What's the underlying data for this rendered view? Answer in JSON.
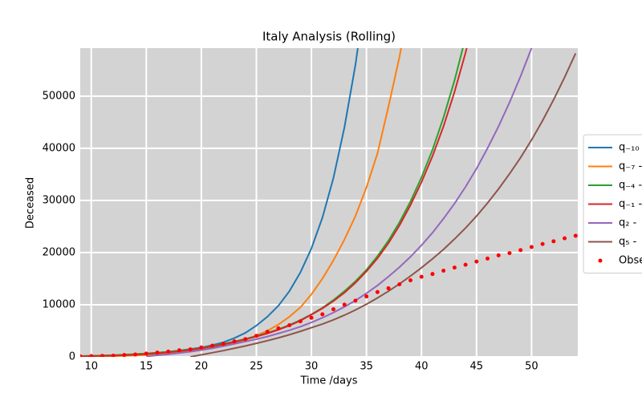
{
  "chart_data": {
    "type": "line",
    "title": "Italy Analysis (Rolling)",
    "x_label": "Time /days",
    "y_label": "Deceased",
    "xlim": [
      9,
      54.2
    ],
    "ylim": [
      0,
      59200
    ],
    "xticks": [
      10,
      15,
      20,
      25,
      30,
      35,
      40,
      45,
      50
    ],
    "yticks": [
      0,
      10000,
      20000,
      30000,
      40000,
      50000
    ],
    "grid": true,
    "background": "#d3d3d3",
    "legend": "right",
    "series": [
      {
        "name": "q₋₁₀",
        "color": "#1f77b4",
        "style": "line",
        "x": [
          9,
          10,
          11,
          12,
          13,
          14,
          15,
          16,
          17,
          18,
          19,
          20,
          21,
          22,
          23,
          24,
          25,
          26,
          27,
          28,
          29,
          30,
          31,
          32,
          33,
          34,
          35
        ],
        "values": [
          150,
          190,
          240,
          310,
          390,
          490,
          620,
          780,
          980,
          1220,
          1500,
          1800,
          2250,
          2800,
          3600,
          4600,
          6000,
          7700,
          9800,
          12600,
          16200,
          20800,
          26700,
          34300,
          44000,
          56000,
          71000
        ]
      },
      {
        "name": "q₋₇ -",
        "color": "#ff7f0e",
        "style": "line",
        "x": [
          9,
          10,
          11,
          12,
          13,
          14,
          15,
          16,
          17,
          18,
          19,
          20,
          21,
          22,
          23,
          24,
          25,
          26,
          27,
          28,
          29,
          30,
          31,
          32,
          33,
          34,
          35,
          36,
          37,
          38,
          39
        ],
        "values": [
          60,
          80,
          110,
          150,
          200,
          270,
          360,
          480,
          640,
          850,
          1150,
          1500,
          1800,
          2200,
          2700,
          3300,
          4100,
          5000,
          6200,
          7700,
          9500,
          12000,
          15000,
          18500,
          22500,
          27000,
          32500,
          39000,
          48000,
          57500,
          69000
        ]
      },
      {
        "name": "q₋₄ -",
        "color": "#2ca02c",
        "style": "line",
        "x": [
          9,
          10,
          11,
          12,
          13,
          14,
          15,
          16,
          17,
          18,
          19,
          20,
          21,
          22,
          23,
          24,
          25,
          26,
          27,
          28,
          29,
          30,
          31,
          32,
          33,
          34,
          35,
          36,
          37,
          38,
          39,
          40,
          41,
          42,
          43,
          44
        ],
        "values": [
          150,
          200,
          260,
          330,
          420,
          530,
          660,
          810,
          990,
          1200,
          1450,
          1750,
          2100,
          2500,
          2950,
          3450,
          4000,
          4600,
          5300,
          6100,
          7050,
          8150,
          9400,
          10900,
          12600,
          14500,
          16700,
          19300,
          22300,
          25800,
          29800,
          34400,
          39700,
          45900,
          53000,
          61200
        ]
      },
      {
        "name": "q₋₁ -",
        "color": "#d62728",
        "style": "line",
        "x": [
          9,
          10,
          11,
          12,
          13,
          14,
          15,
          16,
          17,
          18,
          19,
          20,
          21,
          22,
          23,
          24,
          25,
          26,
          27,
          28,
          29,
          30,
          31,
          32,
          33,
          34,
          35,
          36,
          37,
          38,
          39,
          40,
          41,
          42,
          43,
          44,
          45
        ],
        "values": [
          100,
          140,
          190,
          250,
          330,
          430,
          550,
          700,
          880,
          1100,
          1350,
          1650,
          2000,
          2400,
          2850,
          3350,
          3900,
          4500,
          5200,
          6000,
          6950,
          8100,
          9300,
          10700,
          12300,
          14200,
          16400,
          18900,
          21800,
          25200,
          29100,
          33500,
          38500,
          44200,
          50800,
          58300,
          66800
        ]
      },
      {
        "name": "q₂ -",
        "color": "#9467bd",
        "style": "line",
        "x": [
          15,
          16,
          17,
          18,
          19,
          20,
          21,
          22,
          23,
          24,
          25,
          26,
          27,
          28,
          29,
          30,
          31,
          32,
          33,
          34,
          35,
          36,
          37,
          38,
          39,
          40,
          41,
          42,
          43,
          44,
          45,
          46,
          47,
          48,
          49,
          50,
          51
        ],
        "values": [
          100,
          300,
          500,
          750,
          1000,
          1300,
          1650,
          2050,
          2500,
          2950,
          3400,
          3900,
          4500,
          5100,
          5800,
          6600,
          7500,
          8500,
          9600,
          10800,
          12200,
          13700,
          15400,
          17200,
          19200,
          21400,
          23800,
          26500,
          29400,
          32600,
          36100,
          40000,
          44200,
          48800,
          53800,
          59200,
          65000
        ]
      },
      {
        "name": "q₅ -",
        "color": "#8c564b",
        "style": "line",
        "x": [
          19,
          20,
          21,
          22,
          23,
          24,
          25,
          26,
          27,
          28,
          29,
          30,
          31,
          32,
          33,
          34,
          35,
          36,
          37,
          38,
          39,
          40,
          41,
          42,
          43,
          44,
          45,
          46,
          47,
          48,
          49,
          50,
          51,
          52,
          53,
          54
        ],
        "values": [
          0,
          400,
          800,
          1200,
          1650,
          2100,
          2600,
          3100,
          3650,
          4250,
          4900,
          5600,
          6300,
          7100,
          8000,
          9000,
          10100,
          11300,
          12600,
          14000,
          15500,
          17100,
          18800,
          20600,
          22600,
          24700,
          27000,
          29500,
          32200,
          35100,
          38200,
          41600,
          45300,
          49300,
          53600,
          58200
        ]
      },
      {
        "name": "Obse",
        "color": "#ff0000",
        "style": "markers",
        "x": [
          9,
          10,
          11,
          12,
          13,
          14,
          15,
          16,
          17,
          18,
          19,
          20,
          21,
          22,
          23,
          24,
          25,
          26,
          27,
          28,
          29,
          30,
          31,
          32,
          33,
          34,
          35,
          36,
          37,
          38,
          39,
          40,
          41,
          42,
          43,
          44,
          45,
          46,
          47,
          48,
          49,
          50,
          51,
          52,
          53,
          54
        ],
        "values": [
          107,
          148,
          197,
          233,
          366,
          463,
          631,
          827,
          1016,
          1266,
          1441,
          1809,
          2158,
          2503,
          2978,
          3405,
          4032,
          4825,
          5476,
          6077,
          6820,
          7503,
          8165,
          9134,
          10023,
          10779,
          11591,
          12428,
          13155,
          13915,
          14681,
          15362,
          15887,
          16523,
          17127,
          17669,
          18279,
          18849,
          19468,
          19899,
          20465,
          21067,
          21645,
          22170,
          22745,
          23227
        ]
      }
    ]
  }
}
